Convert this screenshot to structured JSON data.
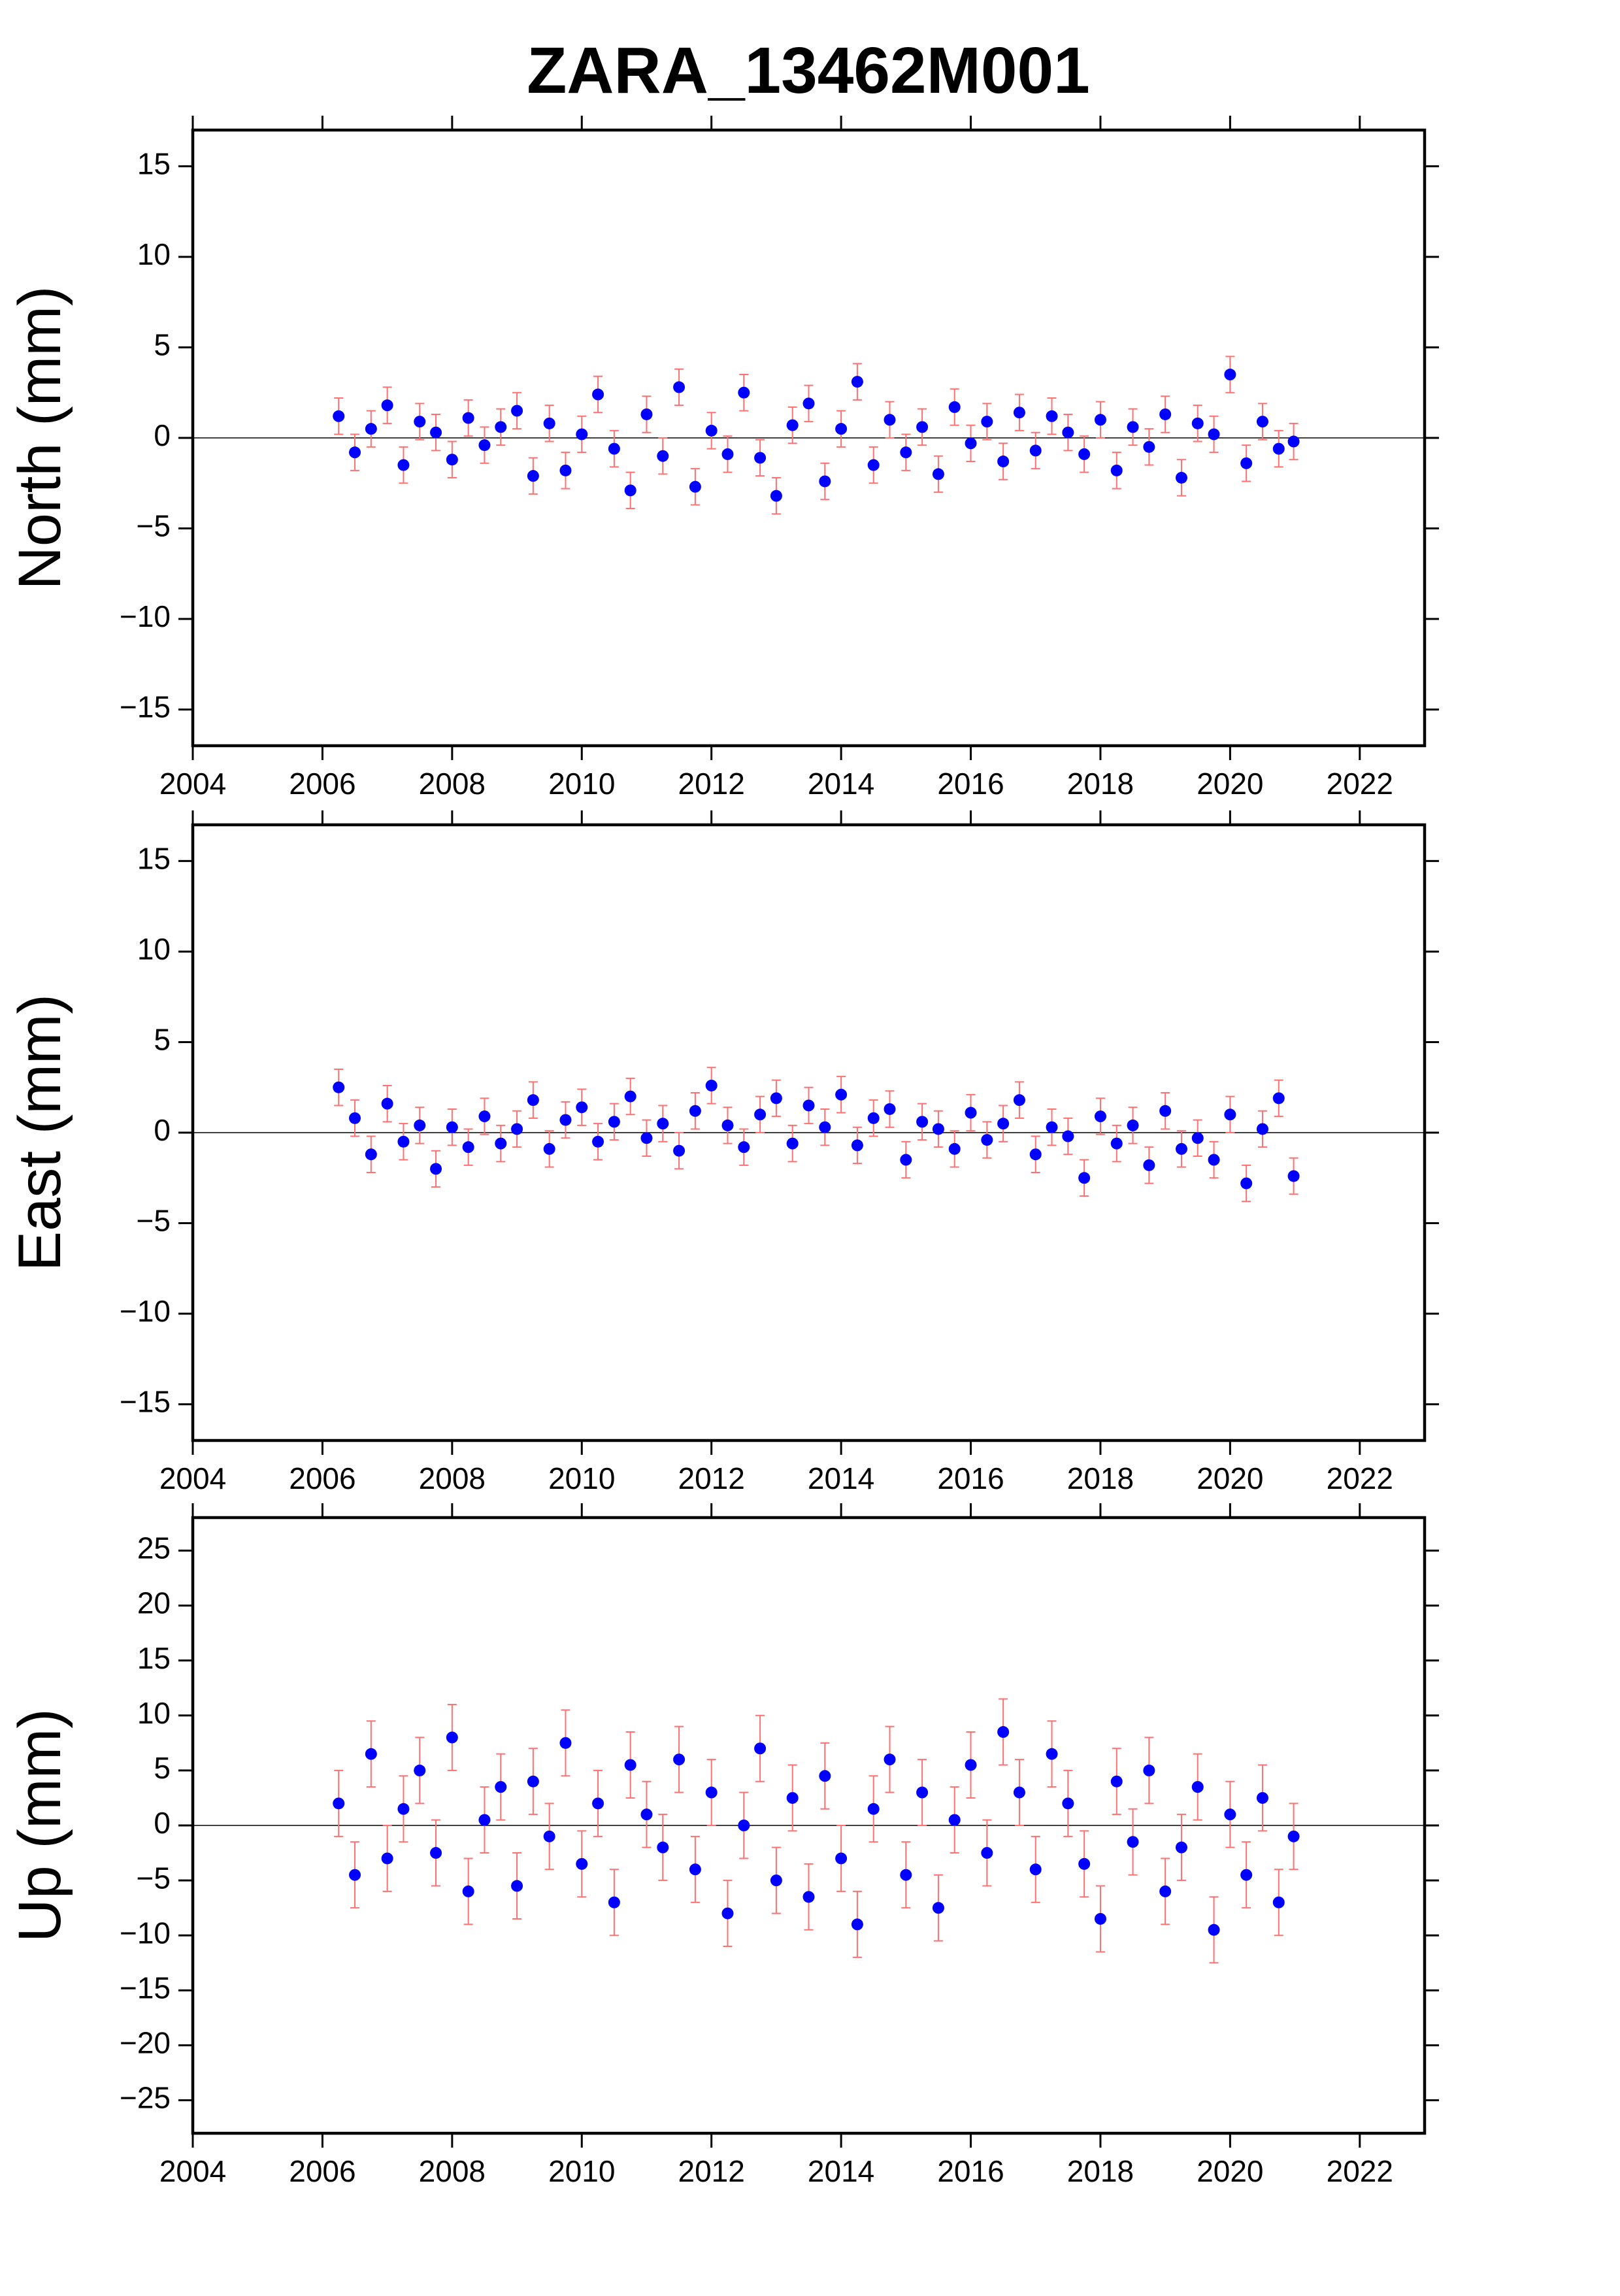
{
  "title": "ZARA_13462M001",
  "chart_data": [
    {
      "type": "scatter",
      "ylabel": "North (mm)",
      "color": "#0000ff",
      "error_color": "#ff7070",
      "error": 1.0,
      "zero_line": true,
      "grid": false,
      "xlim": [
        2004,
        2023
      ],
      "xticks": [
        2004,
        2006,
        2008,
        2010,
        2012,
        2014,
        2016,
        2018,
        2020,
        2022
      ],
      "ylim": [
        -17,
        17
      ],
      "yticks": [
        {
          "value": -15,
          "label": "−15"
        },
        {
          "value": -10,
          "label": "−10"
        },
        {
          "value": -5,
          "label": "−5"
        },
        0,
        5,
        10,
        15
      ],
      "x": [
        2006.25,
        2006.5,
        2006.75,
        2007,
        2007.25,
        2007.5,
        2007.75,
        2008,
        2008.25,
        2008.5,
        2008.75,
        2009,
        2009.25,
        2009.5,
        2009.75,
        2010,
        2010.25,
        2010.5,
        2010.75,
        2011,
        2011.25,
        2011.5,
        2011.75,
        2012,
        2012.25,
        2012.5,
        2012.75,
        2013,
        2013.25,
        2013.5,
        2013.75,
        2014,
        2014.25,
        2014.5,
        2014.75,
        2015,
        2015.25,
        2015.5,
        2015.75,
        2016,
        2016.25,
        2016.5,
        2016.75,
        2017,
        2017.25,
        2017.5,
        2017.75,
        2018,
        2018.25,
        2018.5,
        2018.75,
        2019,
        2019.25,
        2019.5,
        2019.75,
        2020,
        2020.25,
        2020.5,
        2020.75,
        2020.98
      ],
      "values": [
        1.2,
        -0.8,
        0.5,
        1.8,
        -1.5,
        0.9,
        0.3,
        -1.2,
        1.1,
        -0.4,
        0.6,
        1.5,
        -2.1,
        0.8,
        -1.8,
        0.2,
        2.4,
        -0.6,
        -2.9,
        1.3,
        -1.0,
        2.8,
        -2.7,
        0.4,
        -0.9,
        2.5,
        -1.1,
        -3.2,
        0.7,
        1.9,
        -2.4,
        0.5,
        3.1,
        -1.5,
        1.0,
        -0.8,
        0.6,
        -2.0,
        1.7,
        -0.3,
        0.9,
        -1.3,
        1.4,
        -0.7,
        1.2,
        0.3,
        -0.9,
        1.0,
        -1.8,
        0.6,
        -0.5,
        1.3,
        -2.2,
        0.8,
        0.2,
        3.5,
        -1.4,
        0.9,
        -0.6,
        -0.2
      ]
    },
    {
      "type": "scatter",
      "ylabel": "East (mm)",
      "color": "#0000ff",
      "error_color": "#ff7070",
      "error": 1.0,
      "zero_line": true,
      "grid": false,
      "xlim": [
        2004,
        2023
      ],
      "xticks": [
        2004,
        2006,
        2008,
        2010,
        2012,
        2014,
        2016,
        2018,
        2020,
        2022
      ],
      "ylim": [
        -17,
        17
      ],
      "yticks": [
        {
          "value": -15,
          "label": "−15"
        },
        {
          "value": -10,
          "label": "−10"
        },
        {
          "value": -5,
          "label": "−5"
        },
        0,
        5,
        10,
        15
      ],
      "x": [
        2006.25,
        2006.5,
        2006.75,
        2007,
        2007.25,
        2007.5,
        2007.75,
        2008,
        2008.25,
        2008.5,
        2008.75,
        2009,
        2009.25,
        2009.5,
        2009.75,
        2010,
        2010.25,
        2010.5,
        2010.75,
        2011,
        2011.25,
        2011.5,
        2011.75,
        2012,
        2012.25,
        2012.5,
        2012.75,
        2013,
        2013.25,
        2013.5,
        2013.75,
        2014,
        2014.25,
        2014.5,
        2014.75,
        2015,
        2015.25,
        2015.5,
        2015.75,
        2016,
        2016.25,
        2016.5,
        2016.75,
        2017,
        2017.25,
        2017.5,
        2017.75,
        2018,
        2018.25,
        2018.5,
        2018.75,
        2019,
        2019.25,
        2019.5,
        2019.75,
        2020,
        2020.25,
        2020.5,
        2020.75,
        2020.98
      ],
      "values": [
        2.5,
        0.8,
        -1.2,
        1.6,
        -0.5,
        0.4,
        -2.0,
        0.3,
        -0.8,
        0.9,
        -0.6,
        0.2,
        1.8,
        -0.9,
        0.7,
        1.4,
        -0.5,
        0.6,
        2.0,
        -0.3,
        0.5,
        -1.0,
        1.2,
        2.6,
        0.4,
        -0.8,
        1.0,
        1.9,
        -0.6,
        1.5,
        0.3,
        2.1,
        -0.7,
        0.8,
        1.3,
        -1.5,
        0.6,
        0.2,
        -0.9,
        1.1,
        -0.4,
        0.5,
        1.8,
        -1.2,
        0.3,
        -0.2,
        -2.5,
        0.9,
        -0.6,
        0.4,
        -1.8,
        1.2,
        -0.9,
        -0.3,
        -1.5,
        1.0,
        -2.8,
        0.2,
        1.9,
        -2.4
      ]
    },
    {
      "type": "scatter",
      "ylabel": "Up (mm)",
      "color": "#0000ff",
      "error_color": "#ff7070",
      "error": 3.0,
      "zero_line": true,
      "grid": false,
      "xlim": [
        2004,
        2023
      ],
      "xticks": [
        2004,
        2006,
        2008,
        2010,
        2012,
        2014,
        2016,
        2018,
        2020,
        2022
      ],
      "ylim": [
        -28,
        28
      ],
      "yticks": [
        {
          "value": -25,
          "label": "−25"
        },
        {
          "value": -20,
          "label": "−20"
        },
        {
          "value": -15,
          "label": "−15"
        },
        {
          "value": -10,
          "label": "−10"
        },
        {
          "value": -5,
          "label": "−5"
        },
        0,
        5,
        10,
        15,
        20,
        25
      ],
      "x": [
        2006.25,
        2006.5,
        2006.75,
        2007,
        2007.25,
        2007.5,
        2007.75,
        2008,
        2008.25,
        2008.5,
        2008.75,
        2009,
        2009.25,
        2009.5,
        2009.75,
        2010,
        2010.25,
        2010.5,
        2010.75,
        2011,
        2011.25,
        2011.5,
        2011.75,
        2012,
        2012.25,
        2012.5,
        2012.75,
        2013,
        2013.25,
        2013.5,
        2013.75,
        2014,
        2014.25,
        2014.5,
        2014.75,
        2015,
        2015.25,
        2015.5,
        2015.75,
        2016,
        2016.25,
        2016.5,
        2016.75,
        2017,
        2017.25,
        2017.5,
        2017.75,
        2018,
        2018.25,
        2018.5,
        2018.75,
        2019,
        2019.25,
        2019.5,
        2019.75,
        2020,
        2020.25,
        2020.5,
        2020.75,
        2020.98
      ],
      "values": [
        2.0,
        -4.5,
        6.5,
        -3.0,
        1.5,
        5.0,
        -2.5,
        8.0,
        -6.0,
        0.5,
        3.5,
        -5.5,
        4.0,
        -1.0,
        7.5,
        -3.5,
        2.0,
        -7.0,
        5.5,
        1.0,
        -2.0,
        6.0,
        -4.0,
        3.0,
        -8.0,
        0.0,
        7.0,
        -5.0,
        2.5,
        -6.5,
        4.5,
        -3.0,
        -9.0,
        1.5,
        6.0,
        -4.5,
        3.0,
        -7.5,
        0.5,
        5.5,
        -2.5,
        8.5,
        3.0,
        -4.0,
        6.5,
        2.0,
        -3.5,
        -8.5,
        4.0,
        -1.5,
        5.0,
        -6.0,
        -2.0,
        3.5,
        -9.5,
        1.0,
        -4.5,
        2.5,
        -7.0,
        -1.0
      ]
    }
  ]
}
